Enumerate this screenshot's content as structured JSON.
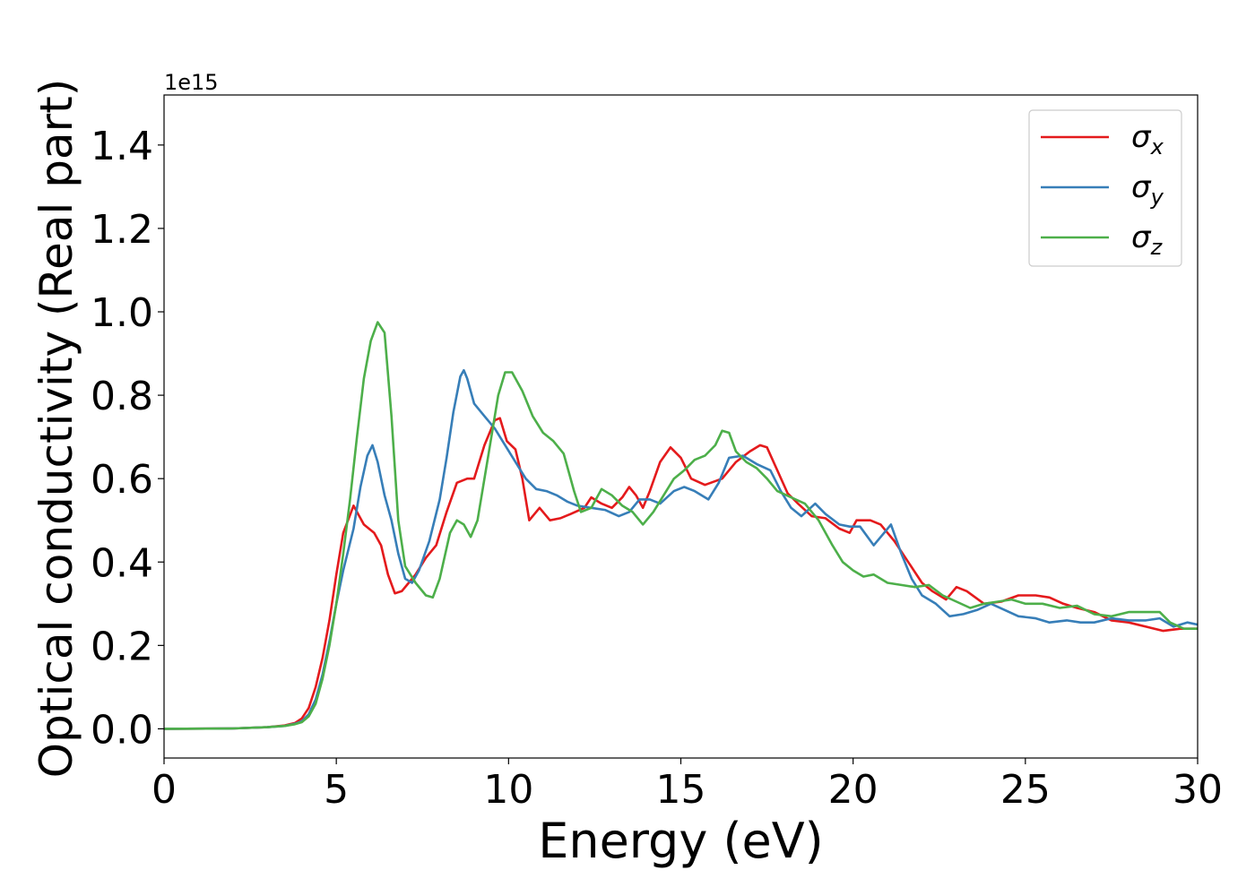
{
  "chart_data": {
    "type": "line",
    "xlabel": "Energy (eV)",
    "ylabel": "Optical conductivity (Real part)",
    "y_offset_label": "1e15",
    "xlim": [
      0,
      30
    ],
    "ylim": [
      -0.07,
      1.52
    ],
    "x_ticks": [
      0,
      5,
      10,
      15,
      20,
      25,
      30
    ],
    "y_ticks": [
      0.0,
      0.2,
      0.4,
      0.6,
      0.8,
      1.0,
      1.2,
      1.4
    ],
    "x_tick_labels": [
      "0",
      "5",
      "10",
      "15",
      "20",
      "25",
      "30"
    ],
    "y_tick_labels": [
      "0.0",
      "0.2",
      "0.4",
      "0.6",
      "0.8",
      "1.0",
      "1.2",
      "1.4"
    ],
    "grid": false,
    "legend_position": "top-right",
    "series": [
      {
        "name": "σx",
        "legend_symbol": "σ",
        "legend_sub": "x",
        "color": "#e41a1c",
        "points": [
          [
            0,
            0.0
          ],
          [
            2,
            0.001
          ],
          [
            3,
            0.004
          ],
          [
            3.5,
            0.008
          ],
          [
            3.8,
            0.014
          ],
          [
            4.0,
            0.025
          ],
          [
            4.2,
            0.05
          ],
          [
            4.4,
            0.1
          ],
          [
            4.6,
            0.17
          ],
          [
            4.8,
            0.26
          ],
          [
            5.0,
            0.37
          ],
          [
            5.2,
            0.47
          ],
          [
            5.5,
            0.535
          ],
          [
            5.8,
            0.49
          ],
          [
            6.1,
            0.47
          ],
          [
            6.3,
            0.44
          ],
          [
            6.5,
            0.37
          ],
          [
            6.7,
            0.325
          ],
          [
            6.9,
            0.33
          ],
          [
            7.1,
            0.35
          ],
          [
            7.3,
            0.37
          ],
          [
            7.6,
            0.41
          ],
          [
            7.9,
            0.44
          ],
          [
            8.2,
            0.52
          ],
          [
            8.5,
            0.59
          ],
          [
            8.8,
            0.6
          ],
          [
            9.0,
            0.6
          ],
          [
            9.3,
            0.68
          ],
          [
            9.6,
            0.74
          ],
          [
            9.75,
            0.745
          ],
          [
            9.95,
            0.69
          ],
          [
            10.2,
            0.67
          ],
          [
            10.4,
            0.6
          ],
          [
            10.6,
            0.5
          ],
          [
            10.9,
            0.53
          ],
          [
            11.2,
            0.5
          ],
          [
            11.5,
            0.505
          ],
          [
            11.8,
            0.515
          ],
          [
            12.2,
            0.53
          ],
          [
            12.4,
            0.555
          ],
          [
            12.7,
            0.54
          ],
          [
            13.0,
            0.53
          ],
          [
            13.3,
            0.555
          ],
          [
            13.5,
            0.58
          ],
          [
            13.7,
            0.56
          ],
          [
            13.9,
            0.53
          ],
          [
            14.1,
            0.57
          ],
          [
            14.4,
            0.64
          ],
          [
            14.7,
            0.675
          ],
          [
            15.0,
            0.65
          ],
          [
            15.3,
            0.6
          ],
          [
            15.7,
            0.585
          ],
          [
            16.2,
            0.6
          ],
          [
            16.6,
            0.64
          ],
          [
            17.0,
            0.665
          ],
          [
            17.3,
            0.68
          ],
          [
            17.5,
            0.675
          ],
          [
            17.8,
            0.62
          ],
          [
            18.1,
            0.565
          ],
          [
            18.4,
            0.54
          ],
          [
            18.8,
            0.51
          ],
          [
            19.2,
            0.505
          ],
          [
            19.6,
            0.48
          ],
          [
            19.9,
            0.47
          ],
          [
            20.1,
            0.5
          ],
          [
            20.5,
            0.5
          ],
          [
            20.8,
            0.49
          ],
          [
            21.2,
            0.45
          ],
          [
            21.6,
            0.4
          ],
          [
            22.0,
            0.35
          ],
          [
            22.3,
            0.33
          ],
          [
            22.7,
            0.31
          ],
          [
            23.0,
            0.34
          ],
          [
            23.3,
            0.33
          ],
          [
            23.8,
            0.3
          ],
          [
            24.3,
            0.305
          ],
          [
            24.8,
            0.32
          ],
          [
            25.3,
            0.32
          ],
          [
            25.7,
            0.315
          ],
          [
            26.1,
            0.3
          ],
          [
            26.5,
            0.29
          ],
          [
            27.0,
            0.28
          ],
          [
            27.5,
            0.26
          ],
          [
            28.0,
            0.255
          ],
          [
            28.5,
            0.245
          ],
          [
            29.0,
            0.235
          ],
          [
            29.5,
            0.24
          ],
          [
            30.0,
            0.24
          ]
        ]
      },
      {
        "name": "σy",
        "legend_symbol": "σ",
        "legend_sub": "y",
        "color": "#377eb8",
        "points": [
          [
            0,
            0.0
          ],
          [
            2,
            0.001
          ],
          [
            3,
            0.004
          ],
          [
            3.5,
            0.007
          ],
          [
            3.8,
            0.012
          ],
          [
            4.0,
            0.018
          ],
          [
            4.2,
            0.035
          ],
          [
            4.4,
            0.07
          ],
          [
            4.6,
            0.13
          ],
          [
            4.8,
            0.21
          ],
          [
            5.0,
            0.3
          ],
          [
            5.2,
            0.38
          ],
          [
            5.5,
            0.48
          ],
          [
            5.7,
            0.58
          ],
          [
            5.9,
            0.655
          ],
          [
            6.05,
            0.68
          ],
          [
            6.2,
            0.64
          ],
          [
            6.4,
            0.56
          ],
          [
            6.6,
            0.5
          ],
          [
            6.8,
            0.42
          ],
          [
            7.0,
            0.36
          ],
          [
            7.2,
            0.35
          ],
          [
            7.4,
            0.38
          ],
          [
            7.7,
            0.45
          ],
          [
            8.0,
            0.55
          ],
          [
            8.2,
            0.65
          ],
          [
            8.4,
            0.76
          ],
          [
            8.6,
            0.845
          ],
          [
            8.7,
            0.86
          ],
          [
            8.8,
            0.84
          ],
          [
            9.0,
            0.78
          ],
          [
            9.3,
            0.75
          ],
          [
            9.6,
            0.72
          ],
          [
            9.9,
            0.68
          ],
          [
            10.2,
            0.64
          ],
          [
            10.5,
            0.6
          ],
          [
            10.8,
            0.575
          ],
          [
            11.1,
            0.57
          ],
          [
            11.4,
            0.56
          ],
          [
            11.7,
            0.545
          ],
          [
            12.0,
            0.535
          ],
          [
            12.4,
            0.53
          ],
          [
            12.8,
            0.525
          ],
          [
            13.2,
            0.51
          ],
          [
            13.5,
            0.52
          ],
          [
            13.8,
            0.55
          ],
          [
            14.1,
            0.55
          ],
          [
            14.4,
            0.54
          ],
          [
            14.8,
            0.57
          ],
          [
            15.1,
            0.58
          ],
          [
            15.4,
            0.57
          ],
          [
            15.8,
            0.55
          ],
          [
            16.1,
            0.59
          ],
          [
            16.4,
            0.65
          ],
          [
            16.8,
            0.655
          ],
          [
            17.2,
            0.635
          ],
          [
            17.6,
            0.62
          ],
          [
            17.9,
            0.57
          ],
          [
            18.2,
            0.53
          ],
          [
            18.5,
            0.51
          ],
          [
            18.9,
            0.54
          ],
          [
            19.2,
            0.515
          ],
          [
            19.6,
            0.49
          ],
          [
            19.9,
            0.485
          ],
          [
            20.2,
            0.485
          ],
          [
            20.6,
            0.44
          ],
          [
            20.9,
            0.47
          ],
          [
            21.1,
            0.49
          ],
          [
            21.4,
            0.42
          ],
          [
            21.7,
            0.36
          ],
          [
            22.0,
            0.32
          ],
          [
            22.4,
            0.3
          ],
          [
            22.8,
            0.27
          ],
          [
            23.2,
            0.275
          ],
          [
            23.6,
            0.285
          ],
          [
            24.0,
            0.3
          ],
          [
            24.4,
            0.285
          ],
          [
            24.8,
            0.27
          ],
          [
            25.3,
            0.265
          ],
          [
            25.7,
            0.255
          ],
          [
            26.2,
            0.26
          ],
          [
            26.6,
            0.255
          ],
          [
            27.0,
            0.255
          ],
          [
            27.5,
            0.265
          ],
          [
            28.0,
            0.26
          ],
          [
            28.5,
            0.26
          ],
          [
            28.9,
            0.265
          ],
          [
            29.3,
            0.245
          ],
          [
            29.7,
            0.255
          ],
          [
            30.0,
            0.25
          ]
        ]
      },
      {
        "name": "σz",
        "legend_symbol": "σ",
        "legend_sub": "z",
        "color": "#4daf4a",
        "points": [
          [
            0,
            0.0
          ],
          [
            2,
            0.001
          ],
          [
            3,
            0.004
          ],
          [
            3.5,
            0.007
          ],
          [
            3.8,
            0.011
          ],
          [
            4.0,
            0.016
          ],
          [
            4.2,
            0.03
          ],
          [
            4.4,
            0.06
          ],
          [
            4.6,
            0.12
          ],
          [
            4.8,
            0.2
          ],
          [
            5.0,
            0.3
          ],
          [
            5.2,
            0.42
          ],
          [
            5.4,
            0.55
          ],
          [
            5.6,
            0.7
          ],
          [
            5.8,
            0.84
          ],
          [
            6.0,
            0.93
          ],
          [
            6.2,
            0.975
          ],
          [
            6.4,
            0.95
          ],
          [
            6.6,
            0.75
          ],
          [
            6.8,
            0.5
          ],
          [
            7.0,
            0.39
          ],
          [
            7.3,
            0.35
          ],
          [
            7.6,
            0.32
          ],
          [
            7.8,
            0.315
          ],
          [
            8.0,
            0.36
          ],
          [
            8.3,
            0.47
          ],
          [
            8.5,
            0.5
          ],
          [
            8.7,
            0.49
          ],
          [
            8.9,
            0.46
          ],
          [
            9.1,
            0.5
          ],
          [
            9.4,
            0.65
          ],
          [
            9.7,
            0.8
          ],
          [
            9.9,
            0.855
          ],
          [
            10.1,
            0.855
          ],
          [
            10.4,
            0.81
          ],
          [
            10.7,
            0.75
          ],
          [
            11.0,
            0.71
          ],
          [
            11.3,
            0.69
          ],
          [
            11.6,
            0.66
          ],
          [
            11.9,
            0.57
          ],
          [
            12.1,
            0.52
          ],
          [
            12.4,
            0.53
          ],
          [
            12.7,
            0.575
          ],
          [
            13.0,
            0.56
          ],
          [
            13.3,
            0.535
          ],
          [
            13.6,
            0.52
          ],
          [
            13.9,
            0.49
          ],
          [
            14.2,
            0.52
          ],
          [
            14.5,
            0.56
          ],
          [
            14.8,
            0.6
          ],
          [
            15.1,
            0.62
          ],
          [
            15.4,
            0.645
          ],
          [
            15.7,
            0.655
          ],
          [
            16.0,
            0.68
          ],
          [
            16.2,
            0.715
          ],
          [
            16.4,
            0.71
          ],
          [
            16.6,
            0.665
          ],
          [
            16.9,
            0.64
          ],
          [
            17.2,
            0.625
          ],
          [
            17.5,
            0.6
          ],
          [
            17.8,
            0.57
          ],
          [
            18.2,
            0.555
          ],
          [
            18.6,
            0.54
          ],
          [
            19.0,
            0.5
          ],
          [
            19.4,
            0.44
          ],
          [
            19.7,
            0.4
          ],
          [
            20.0,
            0.38
          ],
          [
            20.3,
            0.365
          ],
          [
            20.6,
            0.37
          ],
          [
            21.0,
            0.35
          ],
          [
            21.4,
            0.345
          ],
          [
            21.8,
            0.34
          ],
          [
            22.2,
            0.345
          ],
          [
            22.6,
            0.32
          ],
          [
            23.0,
            0.305
          ],
          [
            23.4,
            0.29
          ],
          [
            23.8,
            0.3
          ],
          [
            24.2,
            0.305
          ],
          [
            24.6,
            0.31
          ],
          [
            25.0,
            0.3
          ],
          [
            25.5,
            0.3
          ],
          [
            26.0,
            0.29
          ],
          [
            26.5,
            0.295
          ],
          [
            27.0,
            0.275
          ],
          [
            27.5,
            0.27
          ],
          [
            28.0,
            0.28
          ],
          [
            28.5,
            0.28
          ],
          [
            28.9,
            0.28
          ],
          [
            29.2,
            0.255
          ],
          [
            29.6,
            0.24
          ],
          [
            30.0,
            0.24
          ]
        ]
      }
    ]
  }
}
